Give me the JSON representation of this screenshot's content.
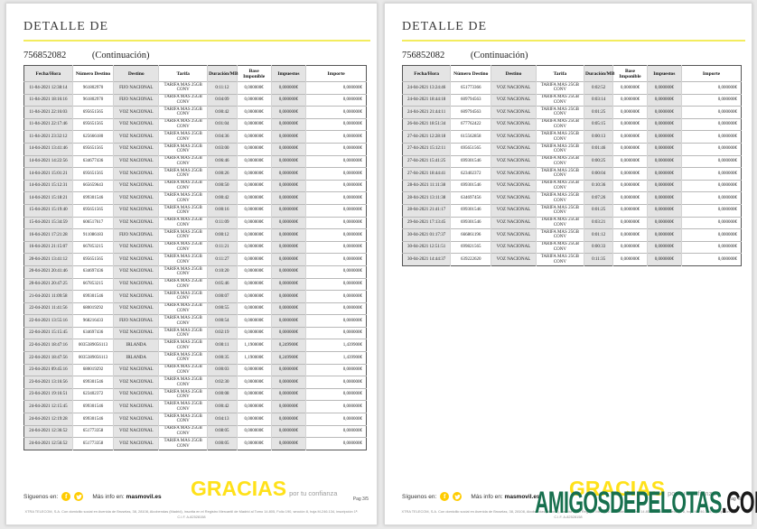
{
  "brand": {
    "accent_yellow": "#ffe11a",
    "rule_yellow": "#f3ec5e",
    "social_yellow": "#ffcc00",
    "watermark_green": "#17704e",
    "table_stripe_gray": "#e4e4e4"
  },
  "pages": [
    {
      "title": "DETALLE DE",
      "reference": "756852082",
      "continuation": "(Continuación)",
      "table": {
        "headers": [
          "Fecha/Hora",
          "Número Destino",
          "Destino",
          "Tarifa",
          "Duración/MB",
          "Base Imponible",
          "Impuestos",
          "Importe"
        ],
        "rows": [
          [
            "11-04-2021 12:38:14",
            "961802970",
            "FIJO NACIONAL",
            "TARIFA MÁS 25GB CONV",
            "0:11:12",
            "0,000000€",
            "0,000000€",
            "0,000000€"
          ],
          [
            "11-04-2021 18:16:16",
            "961802970",
            "FIJO NACIONAL",
            "TARIFA MÁS 25GB CONV",
            "0:04:09",
            "0,000000€",
            "0,000000€",
            "0,000000€"
          ],
          [
            "11-04-2021 22:16:03",
            "695651565",
            "VOZ NACIONAL",
            "TARIFA MÁS 25GB CONV",
            "0:00:42",
            "0,000000€",
            "0,000000€",
            "0,000000€"
          ],
          [
            "11-04-2021 22:17:46",
            "695651565",
            "VOZ NACIONAL",
            "TARIFA MÁS 25GB CONV",
            "0:01:04",
            "0,000000€",
            "0,000000€",
            "0,000000€"
          ],
          [
            "11-04-2021 23:32:12",
            "625666180",
            "VOZ NACIONAL",
            "TARIFA MÁS 25GB CONV",
            "0:04:36",
            "0,000000€",
            "0,000000€",
            "0,000000€"
          ],
          [
            "14-04-2021 13:41:46",
            "695651565",
            "VOZ NACIONAL",
            "TARIFA MÁS 25GB CONV",
            "0:03:00",
            "0,000000€",
            "0,000000€",
            "0,000000€"
          ],
          [
            "14-04-2021 14:22:56",
            "634677436",
            "VOZ NACIONAL",
            "TARIFA MÁS 25GB CONV",
            "0:06:46",
            "0,000000€",
            "0,000000€",
            "0,000000€"
          ],
          [
            "14-04-2021 15:01:21",
            "695651565",
            "VOZ NACIONAL",
            "TARIFA MÁS 25GB CONV",
            "0:00:26",
            "0,000000€",
            "0,000000€",
            "0,000000€"
          ],
          [
            "14-04-2021 15:12:31",
            "665659643",
            "VOZ NACIONAL",
            "TARIFA MÁS 25GB CONV",
            "0:00:50",
            "0,000000€",
            "0,000000€",
            "0,000000€"
          ],
          [
            "14-04-2021 15:18:21",
            "699301546",
            "VOZ NACIONAL",
            "TARIFA MÁS 25GB CONV",
            "0:00:42",
            "0,000000€",
            "0,000000€",
            "0,000000€"
          ],
          [
            "15-04-2021 15:19:40",
            "695651565",
            "VOZ NACIONAL",
            "TARIFA MÁS 25GB CONV",
            "0:00:16",
            "0,000000€",
            "0,000000€",
            "0,000000€"
          ],
          [
            "15-04-2021 15:34:59",
            "606517617",
            "VOZ NACIONAL",
            "TARIFA MÁS 25GB CONV",
            "0:11:09",
            "0,000000€",
            "0,000000€",
            "0,000000€"
          ],
          [
            "16-04-2021 17:21:28",
            "911086183",
            "FIJO NACIONAL",
            "TARIFA MÁS 25GB CONV",
            "0:00:12",
            "0,000000€",
            "0,000000€",
            "0,000000€"
          ],
          [
            "16-04-2021 21:15:07",
            "667853215",
            "VOZ NACIONAL",
            "TARIFA MÁS 25GB CONV",
            "0:11:21",
            "0,000000€",
            "0,000000€",
            "0,000000€"
          ],
          [
            "20-04-2021 13:41:12",
            "695651565",
            "VOZ NACIONAL",
            "TARIFA MÁS 25GB CONV",
            "0:11:27",
            "0,000000€",
            "0,000000€",
            "0,000000€"
          ],
          [
            "20-04-2021 20:41:46",
            "634697436",
            "VOZ NACIONAL",
            "TARIFA MÁS 25GB CONV",
            "0:10:20",
            "0,000000€",
            "0,000000€",
            "0,000000€"
          ],
          [
            "20-04-2021 20:47:25",
            "667853215",
            "VOZ NACIONAL",
            "TARIFA MÁS 25GB CONV",
            "0:05:46",
            "0,000000€",
            "0,000000€",
            "0,000000€"
          ],
          [
            "21-04-2021 11:09:58",
            "699301546",
            "VOZ NACIONAL",
            "TARIFA MÁS 25GB CONV",
            "0:00:07",
            "0,000000€",
            "0,000000€",
            "0,000000€"
          ],
          [
            "22-04-2021 11:41:56",
            "680019292",
            "VOZ NACIONAL",
            "TARIFA MÁS 25GB CONV",
            "0:00:55",
            "0,000000€",
            "0,000000€",
            "0,000000€"
          ],
          [
            "22-04-2021 13:55:16",
            "968216433",
            "FIJO NACIONAL",
            "TARIFA MÁS 25GB CONV",
            "0:00:54",
            "0,000000€",
            "0,000000€",
            "0,000000€"
          ],
          [
            "22-04-2021 15:15:45",
            "634697436",
            "VOZ NACIONAL",
            "TARIFA MÁS 25GB CONV",
            "0:02:19",
            "0,000000€",
            "0,000000€",
            "0,000000€"
          ],
          [
            "22-04-2021 18:47:16",
            "0035389056113",
            "IRLANDA",
            "TARIFA MÁS 25GB CONV",
            "0:00:11",
            "1,190000€",
            "0,249900€",
            "1,439900€"
          ],
          [
            "22-04-2021 18:47:56",
            "0035389056113",
            "IRLANDA",
            "TARIFA MÁS 25GB CONV",
            "0:00:35",
            "1,190000€",
            "0,249900€",
            "1,439900€"
          ],
          [
            "23-04-2021 09:45:16",
            "680019292",
            "VOZ NACIONAL",
            "TARIFA MÁS 25GB CONV",
            "0:00:03",
            "0,000000€",
            "0,000000€",
            "0,000000€"
          ],
          [
            "23-04-2021 13:16:56",
            "699301546",
            "VOZ NACIONAL",
            "TARIFA MÁS 25GB CONV",
            "0:02:30",
            "0,000000€",
            "0,000000€",
            "0,000000€"
          ],
          [
            "23-04-2021 19:16:51",
            "623402372",
            "VOZ NACIONAL",
            "TARIFA MÁS 25GB CONV",
            "0:00:08",
            "0,000000€",
            "0,000000€",
            "0,000000€"
          ],
          [
            "24-04-2021 12:15:45",
            "699301546",
            "VOZ NACIONAL",
            "TARIFA MÁS 25GB CONV",
            "0:00:42",
            "0,000000€",
            "0,000000€",
            "0,000000€"
          ],
          [
            "24-04-2021 12:19:28",
            "699301546",
            "VOZ NACIONAL",
            "TARIFA MÁS 25GB CONV",
            "0:04:13",
            "0,000000€",
            "0,000000€",
            "0,000000€"
          ],
          [
            "24-04-2021 12:36:52",
            "651773358",
            "VOZ NACIONAL",
            "TARIFA MÁS 25GB CONV",
            "0:08:05",
            "0,000000€",
            "0,000000€",
            "0,000000€"
          ],
          [
            "24-04-2021 12:56:52",
            "651773358",
            "VOZ NACIONAL",
            "TARIFA MÁS 25GB CONV",
            "0:00:05",
            "0,000000€",
            "0,000000€",
            "0,000000€"
          ]
        ]
      },
      "footer": {
        "follow_label": "Síguenos en:",
        "facebook_icon": "f",
        "more_info_label": "Más info en:",
        "more_info_site": "masmovil.es",
        "thanks_big": "GRACIAS",
        "thanks_small": "por tu confianza",
        "page_number": "Pag 3/5"
      },
      "legal": "XTRA TELECOM, S.A. Con domicilio social en Avenida de Bruselas, 38, 28108, Alcobendas (Madrid), inscrita en el Registro Mercantil de Madrid al Tomo 14.805, Folio 190, sección 8, hoja M-246.134, inscripción 1ª. C.I.F. A-82528158"
    },
    {
      "title": "DETALLE DE",
      "reference": "756852082",
      "continuation": "(Continuación)",
      "table": {
        "headers": [
          "Fecha/Hora",
          "Número Destino",
          "Destino",
          "Tarifa",
          "Duración/MB",
          "Base Imponible",
          "Impuestos",
          "Importe"
        ],
        "rows": [
          [
            "24-04-2021 13:24:46",
            "651773366",
            "VOZ NACIONAL",
            "TARIFA MÁS 25GB CONV",
            "0:02:52",
            "0,000000€",
            "0,000000€",
            "0,000000€"
          ],
          [
            "24-04-2021 18:44:18",
            "609794563",
            "VOZ NACIONAL",
            "TARIFA MÁS 25GB CONV",
            "0:03:14",
            "0,000000€",
            "0,000000€",
            "0,000000€"
          ],
          [
            "24-04-2021 21:44:11",
            "609794563",
            "VOZ NACIONAL",
            "TARIFA MÁS 25GB CONV",
            "0:01:25",
            "0,000000€",
            "0,000000€",
            "0,000000€"
          ],
          [
            "26-04-2021 18:51:34",
            "677762422",
            "VOZ NACIONAL",
            "TARIFA MÁS 25GB CONV",
            "0:05:15",
            "0,000000€",
            "0,000000€",
            "0,000000€"
          ],
          [
            "27-04-2021 12:28:18",
            "615562858",
            "VOZ NACIONAL",
            "TARIFA MÁS 25GB CONV",
            "0:00:13",
            "0,000000€",
            "0,000000€",
            "0,000000€"
          ],
          [
            "27-04-2021 15:12:11",
            "695651565",
            "VOZ NACIONAL",
            "TARIFA MÁS 25GB CONV",
            "0:01:46",
            "0,000000€",
            "0,000000€",
            "0,000000€"
          ],
          [
            "27-04-2021 15:41:25",
            "699301546",
            "VOZ NACIONAL",
            "TARIFA MÁS 25GB CONV",
            "0:00:25",
            "0,000000€",
            "0,000000€",
            "0,000000€"
          ],
          [
            "27-04-2021 18:44:41",
            "623402372",
            "VOZ NACIONAL",
            "TARIFA MÁS 25GB CONV",
            "0:00:04",
            "0,000000€",
            "0,000000€",
            "0,000000€"
          ],
          [
            "28-04-2021 11:11:38",
            "699301546",
            "VOZ NACIONAL",
            "TARIFA MÁS 25GB CONV",
            "0:10:36",
            "0,000000€",
            "0,000000€",
            "0,000000€"
          ],
          [
            "28-04-2021 13:11:38",
            "634697456",
            "VOZ NACIONAL",
            "TARIFA MÁS 25GB CONV",
            "0:07:26",
            "0,000000€",
            "0,000000€",
            "0,000000€"
          ],
          [
            "28-04-2021 21:41:17",
            "699301546",
            "VOZ NACIONAL",
            "TARIFA MÁS 25GB CONV",
            "0:01:25",
            "0,000000€",
            "0,000000€",
            "0,000000€"
          ],
          [
            "29-04-2021 17:13:45",
            "699301546",
            "VOZ NACIONAL",
            "TARIFA MÁS 25GB CONV",
            "0:03:21",
            "0,000000€",
            "0,000000€",
            "0,000000€"
          ],
          [
            "30-04-2021 01:17:37",
            "666861196",
            "VOZ NACIONAL",
            "TARIFA MÁS 25GB CONV",
            "0:01:12",
            "0,000000€",
            "0,000000€",
            "0,000000€"
          ],
          [
            "30-04-2021 12:51:51",
            "699821565",
            "VOZ NACIONAL",
            "TARIFA MÁS 25GB CONV",
            "0:00:33",
            "0,000000€",
            "0,000000€",
            "0,000000€"
          ],
          [
            "30-04-2021 14:44:37",
            "639222620",
            "VOZ NACIONAL",
            "TARIFA MÁS 25GB CONV",
            "0:11:35",
            "0,000000€",
            "0,000000€",
            "0,000000€"
          ]
        ]
      },
      "footer": {
        "follow_label": "Síguenos en:",
        "facebook_icon": "f",
        "more_info_label": "Más info en:",
        "more_info_site": "masmovil.es",
        "thanks_big": "GRACIAS",
        "thanks_small": "por tu confianza",
        "page_number": "Pag 4/5"
      },
      "legal": "XTRA TELECOM, S.A. Con domicilio social en Avenida de Bruselas, 38, 28108, Alcobendas (Madrid), inscrita en el Registro Mercantil de Madrid al Tomo 14.805, Folio 190, sección 8, hoja M-246.134, inscripción 1ª. C.I.F. A-82528158",
      "watermark": {
        "text_main": "AMIGOSDEPELOTAS",
        "text_suffix": ".COM"
      }
    }
  ]
}
